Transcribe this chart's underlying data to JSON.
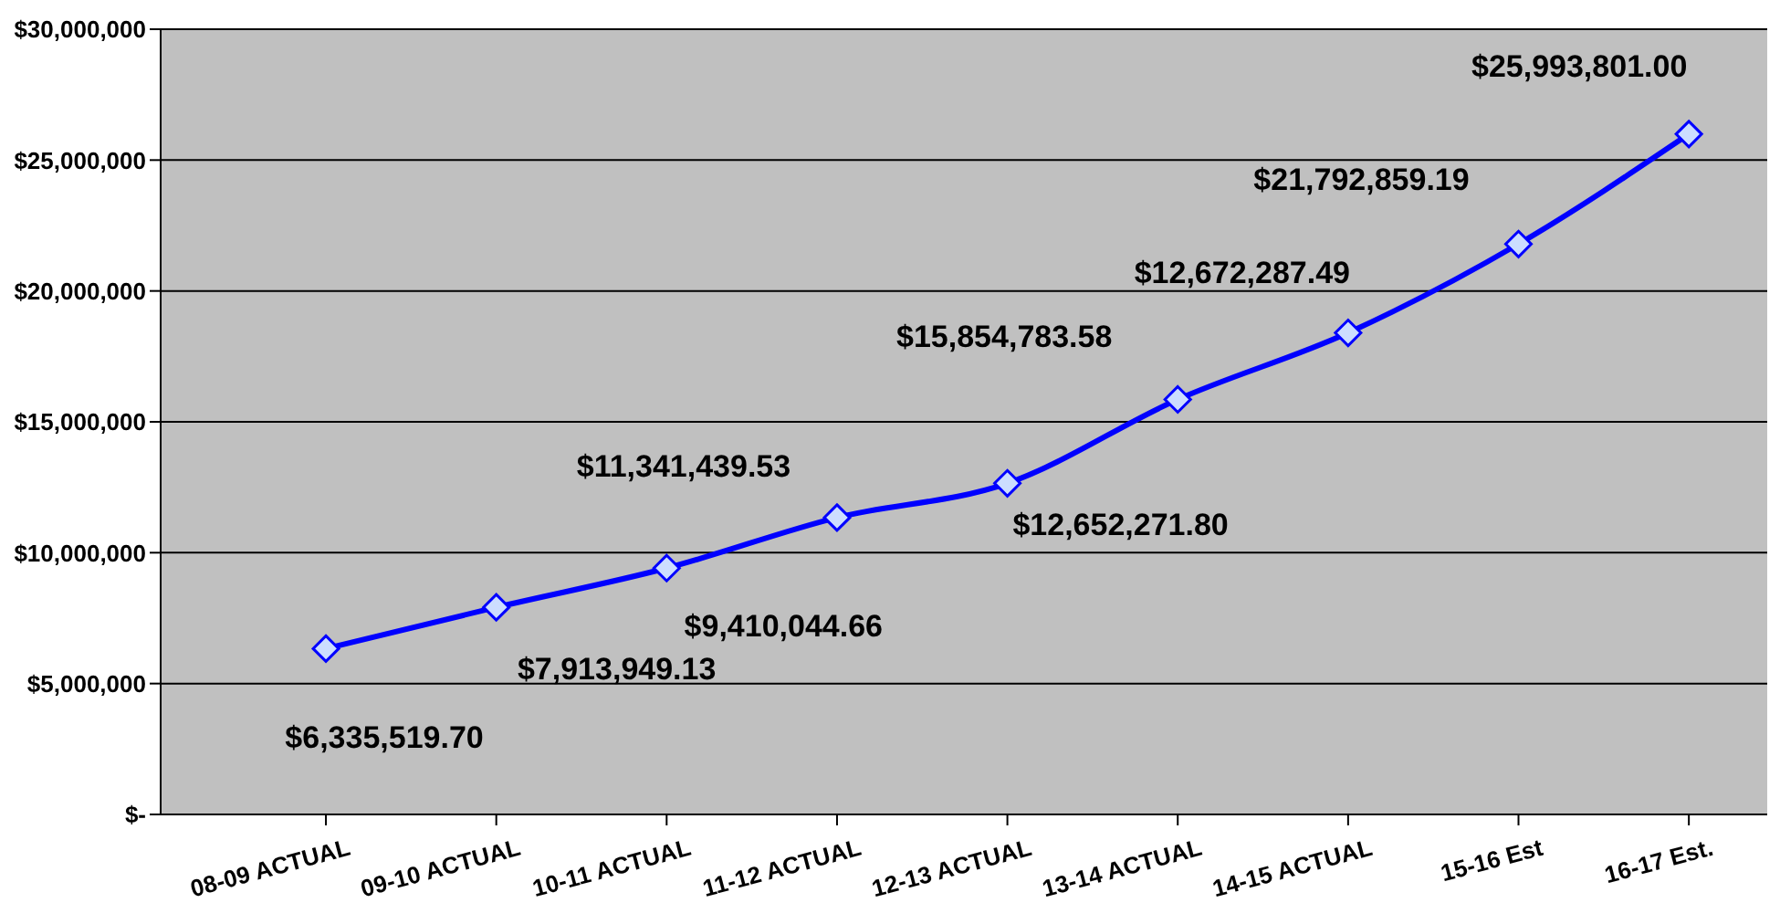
{
  "chart_data": {
    "type": "line",
    "categories": [
      "08-09 ACTUAL",
      "09-10 ACTUAL",
      "10-11 ACTUAL",
      "11-12 ACTUAL",
      "12-13 ACTUAL",
      "13-14 ACTUAL",
      "14-15 ACTUAL",
      "15-16 Est",
      "16-17 Est."
    ],
    "series": [
      {
        "color": "#0000ff",
        "values": [
          6335519.7,
          7913949.13,
          9410044.66,
          11341439.53,
          12652271.8,
          15854783.58,
          18400000,
          21792859.19,
          25993801.0
        ],
        "value_labels": [
          "$6,335,519.70",
          "$7,913,949.13",
          "$9,410,044.66",
          "$11,341,439.53",
          "$12,652,271.80",
          "$15,854,783.58",
          null,
          "$21,792,859.19",
          "$25,993,801.00"
        ]
      }
    ],
    "annotations": [
      {
        "text": "$12,672,287.49",
        "x": "14-15 ACTUAL",
        "y": 18400000
      }
    ],
    "ylim": [
      0,
      30000000
    ],
    "yticks": [
      {
        "value": 0,
        "label": "$-"
      },
      {
        "value": 5000000,
        "label": "$5,000,000"
      },
      {
        "value": 10000000,
        "label": "$10,000,000"
      },
      {
        "value": 15000000,
        "label": "$15,000,000"
      },
      {
        "value": 20000000,
        "label": "$20,000,000"
      },
      {
        "value": 25000000,
        "label": "$25,000,000"
      },
      {
        "value": 30000000,
        "label": "$30,000,000"
      }
    ],
    "grid": "y",
    "marker": "diamond",
    "line_style": "solid",
    "legend": false
  }
}
